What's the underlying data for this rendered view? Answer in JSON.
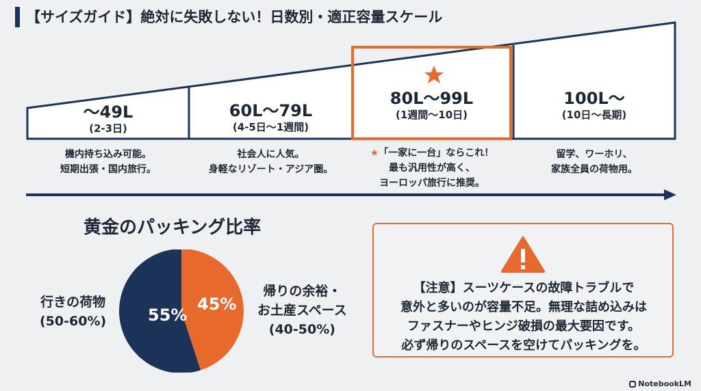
{
  "title": "【サイズガイド】絶対に失敗しない！日数別・適正容量スケール",
  "scale": {
    "segments": [
      {
        "size": "〜49L",
        "days": "(2-3日)",
        "desc": [
          "機内持ち込み可能。",
          "短期出張・国内旅行。"
        ],
        "highlight": false
      },
      {
        "size": "60L〜79L",
        "days": "(4-5日〜1週間)",
        "desc": [
          "社会人に人気。",
          "身軽なリゾート・アジア圏。"
        ],
        "highlight": false
      },
      {
        "size": "80L〜99L",
        "days": "(1週間〜10日)",
        "desc": [
          "★「一家に一台」ならこれ！",
          "最も汎用性が高く、",
          "ヨーロッパ旅行に推奨。"
        ],
        "highlight": true
      },
      {
        "size": "100L〜",
        "days": "(10日〜長期)",
        "desc": [
          "留学、ワーホリ、",
          "家族全員の荷物用。"
        ],
        "highlight": false
      }
    ]
  },
  "ratio": {
    "title": "黄金のパッキング比率",
    "outbound": {
      "pct": "55%",
      "value": 55,
      "label": [
        "行きの荷物",
        "(50-60%)"
      ]
    },
    "return": {
      "pct": "45%",
      "value": 45,
      "label": [
        "帰りの余裕・",
        "お土産スペース",
        "(40-50%)"
      ]
    }
  },
  "warning": {
    "lines": [
      "【注意】スーツケースの故障トラブルで",
      "意外と多いのが容量不足。無理な詰め込みは",
      "ファスナーやヒンジ破損の最大要因です。",
      "必ず帰りのスペースを空けてパッキングを。"
    ]
  },
  "brand": "NotebookLM",
  "colors": {
    "navy": "#1b3358",
    "orange": "#e8692c",
    "warning_border": "#e36f37"
  }
}
